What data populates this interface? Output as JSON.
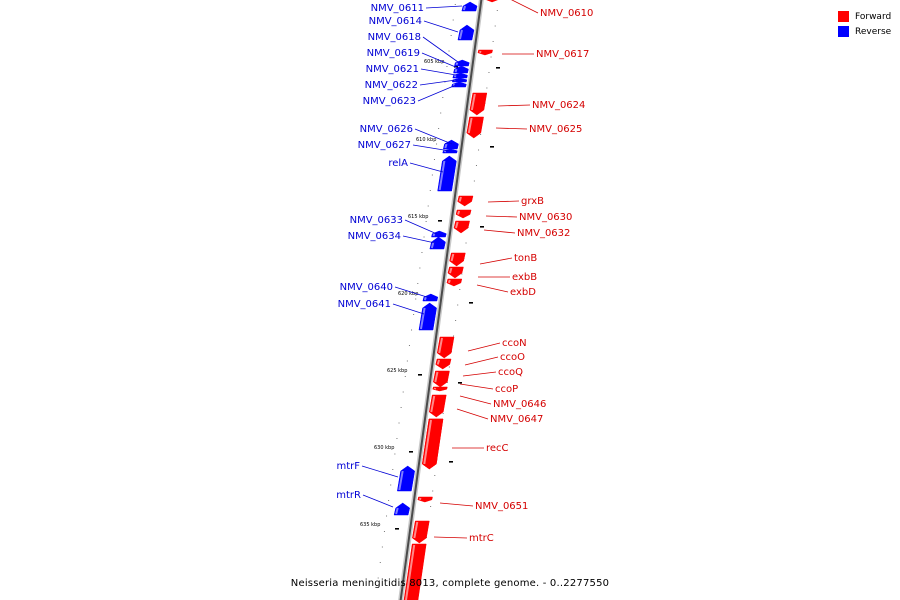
{
  "legend": {
    "forward_label": "Forward",
    "reverse_label": "Reverse",
    "forward_color": "#ff0000",
    "reverse_color": "#0000ff"
  },
  "caption": "Neisseria meningitidis 8013, complete genome. - 0..2277550",
  "ticks": [
    "605 kbp",
    "610 kbp",
    "615 kbp",
    "620 kbp",
    "625 kbp",
    "630 kbp",
    "635 kbp"
  ],
  "genes": [
    {
      "name": "NMV_0610",
      "strand": "forward"
    },
    {
      "name": "NMV_0611",
      "strand": "reverse"
    },
    {
      "name": "NMV_0614",
      "strand": "reverse"
    },
    {
      "name": "NMV_0617",
      "strand": "forward"
    },
    {
      "name": "NMV_0618",
      "strand": "reverse"
    },
    {
      "name": "NMV_0619",
      "strand": "reverse"
    },
    {
      "name": "NMV_0621",
      "strand": "reverse"
    },
    {
      "name": "NMV_0622",
      "strand": "reverse"
    },
    {
      "name": "NMV_0623",
      "strand": "reverse"
    },
    {
      "name": "NMV_0624",
      "strand": "forward"
    },
    {
      "name": "NMV_0625",
      "strand": "forward"
    },
    {
      "name": "NMV_0626",
      "strand": "reverse"
    },
    {
      "name": "NMV_0627",
      "strand": "reverse"
    },
    {
      "name": "relA",
      "strand": "reverse"
    },
    {
      "name": "grxB",
      "strand": "forward"
    },
    {
      "name": "NMV_0630",
      "strand": "forward"
    },
    {
      "name": "NMV_0632",
      "strand": "forward"
    },
    {
      "name": "NMV_0633",
      "strand": "reverse"
    },
    {
      "name": "NMV_0634",
      "strand": "reverse"
    },
    {
      "name": "tonB",
      "strand": "forward"
    },
    {
      "name": "exbB",
      "strand": "forward"
    },
    {
      "name": "exbD",
      "strand": "forward"
    },
    {
      "name": "NMV_0640",
      "strand": "reverse"
    },
    {
      "name": "NMV_0641",
      "strand": "reverse"
    },
    {
      "name": "ccoN",
      "strand": "forward"
    },
    {
      "name": "ccoO",
      "strand": "forward"
    },
    {
      "name": "ccoQ",
      "strand": "forward"
    },
    {
      "name": "ccoP",
      "strand": "forward"
    },
    {
      "name": "NMV_0646",
      "strand": "forward"
    },
    {
      "name": "NMV_0647",
      "strand": "forward"
    },
    {
      "name": "recC",
      "strand": "forward"
    },
    {
      "name": "mtrF",
      "strand": "reverse"
    },
    {
      "name": "mtrR",
      "strand": "reverse"
    },
    {
      "name": "NMV_0651",
      "strand": "forward"
    },
    {
      "name": "mtrC",
      "strand": "forward"
    }
  ]
}
